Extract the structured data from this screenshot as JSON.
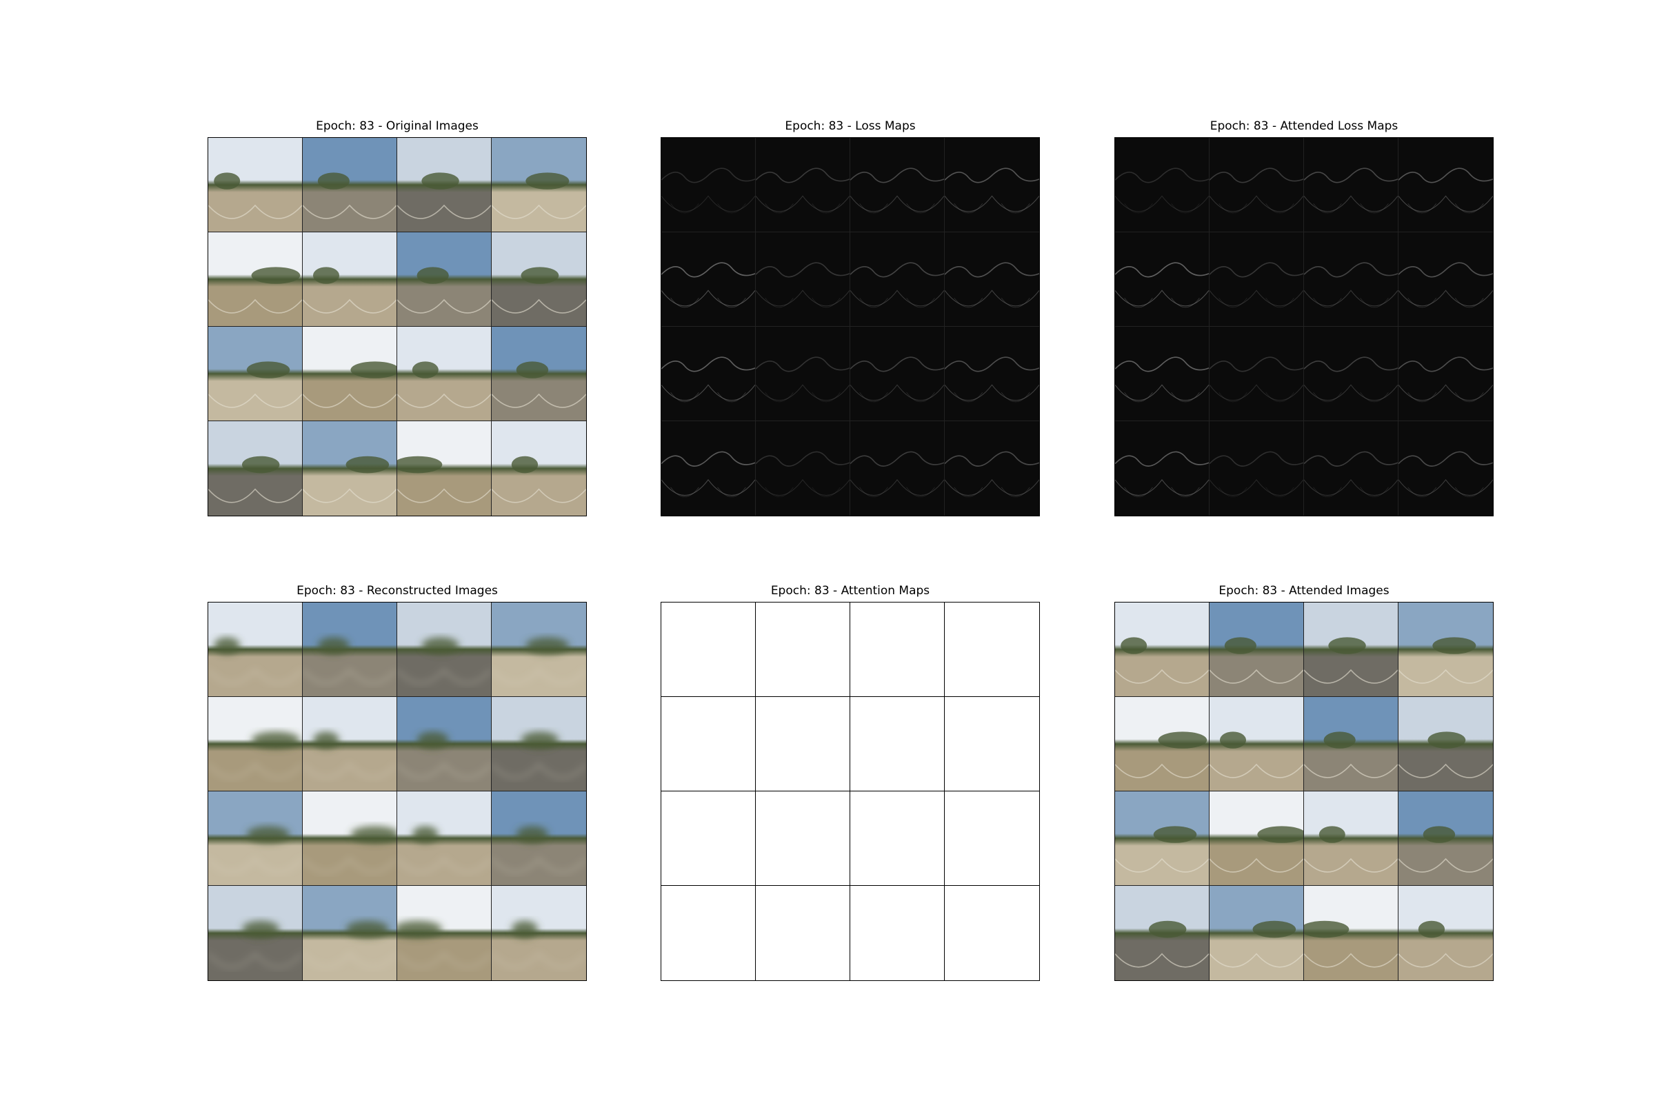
{
  "figure": {
    "panels": [
      {
        "id": "original",
        "title": "Epoch: 83 - Original Images",
        "kind": "photo"
      },
      {
        "id": "loss",
        "title": "Epoch: 83 - Loss Maps",
        "kind": "loss"
      },
      {
        "id": "attended-loss",
        "title": "Epoch: 83 - Attended Loss Maps",
        "kind": "loss"
      },
      {
        "id": "reconstructed",
        "title": "Epoch: 83 - Reconstructed Images",
        "kind": "blur"
      },
      {
        "id": "attention",
        "title": "Epoch: 83 - Attention Maps",
        "kind": "blank"
      },
      {
        "id": "attended",
        "title": "Epoch: 83 - Attended Images",
        "kind": "photo"
      }
    ],
    "grid": {
      "rows": 4,
      "cols": 4
    }
  },
  "palette": {
    "sky_light": "#dfe6ee",
    "sky_blue": "#6f93b8",
    "horizon_green": "#4a5a36",
    "ground_tan": "#b5a88e",
    "ground_gray": "#6f6c64",
    "loss_bg": "#0b0b0b"
  }
}
